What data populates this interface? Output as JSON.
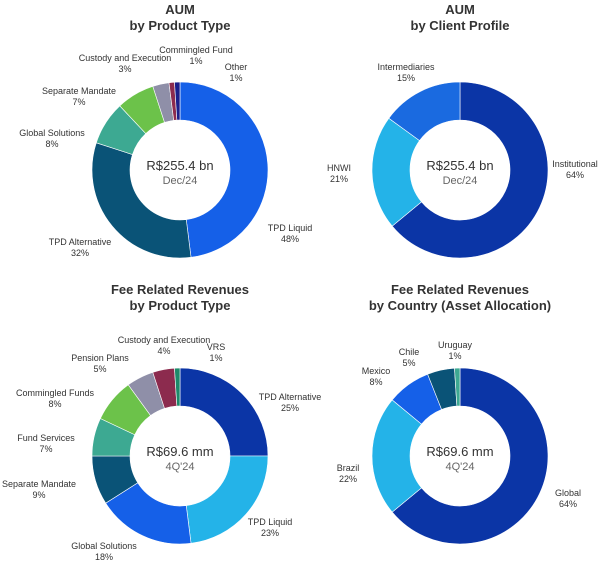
{
  "chart_data": [
    {
      "type": "pie",
      "title": "AUM",
      "subtitle": "by Product Type",
      "center_value": "R$255.4 bn",
      "center_label": "Dec/24",
      "categories": [
        "TPD Liquid",
        "TPD Alternative",
        "Global Solutions",
        "Separate Mandate",
        "Custody and Execution",
        "Commingled Fund",
        "Other"
      ],
      "values": [
        48,
        32,
        8,
        7,
        3,
        1,
        1
      ],
      "labels": [
        "48%",
        "32%",
        "8%",
        "7%",
        "3%",
        "1%",
        "1%"
      ],
      "colors": [
        "#1560e8",
        "#0a5377",
        "#3da992",
        "#6cc24a",
        "#8f8fa8",
        "#8c2b4e",
        "#1a1f8c"
      ]
    },
    {
      "type": "pie",
      "title": "AUM",
      "subtitle": "by Client Profile",
      "center_value": "R$255.4 bn",
      "center_label": "Dec/24",
      "categories": [
        "Institutional",
        "HNWI",
        "Intermediaries"
      ],
      "values": [
        64,
        21,
        15
      ],
      "labels": [
        "64%",
        "21%",
        "15%"
      ],
      "colors": [
        "#0b35a6",
        "#24b3e8",
        "#1a6ae0"
      ]
    },
    {
      "type": "pie",
      "title": "Fee Related Revenues",
      "subtitle": "by Product Type",
      "center_value": "R$69.6 mm",
      "center_label": "4Q'24",
      "categories": [
        "TPD Alternative",
        "TPD Liquid",
        "Global Solutions",
        "Separate Mandate",
        "Fund Services",
        "Commingled Funds",
        "Pension Plans",
        "Custody and Execution",
        "VRS"
      ],
      "values": [
        25,
        23,
        18,
        9,
        7,
        8,
        5,
        4,
        1
      ],
      "labels": [
        "25%",
        "23%",
        "18%",
        "9%",
        "7%",
        "8%",
        "5%",
        "4%",
        "1%"
      ],
      "colors": [
        "#0b35a6",
        "#24b3e8",
        "#1560e8",
        "#0a5377",
        "#3da992",
        "#6cc24a",
        "#8f8fa8",
        "#8c2b4e",
        "#1d8a6a"
      ]
    },
    {
      "type": "pie",
      "title": "Fee Related Revenues",
      "subtitle": "by Country (Asset Allocation)",
      "center_value": "R$69.6 mm",
      "center_label": "4Q'24",
      "categories": [
        "Global",
        "Brazil",
        "Mexico",
        "Chile",
        "Uruguay"
      ],
      "values": [
        64,
        22,
        8,
        5,
        1
      ],
      "labels": [
        "64%",
        "22%",
        "8%",
        "5%",
        "1%"
      ],
      "colors": [
        "#0b35a6",
        "#24b3e8",
        "#1560e8",
        "#0a5377",
        "#3da992"
      ]
    }
  ]
}
